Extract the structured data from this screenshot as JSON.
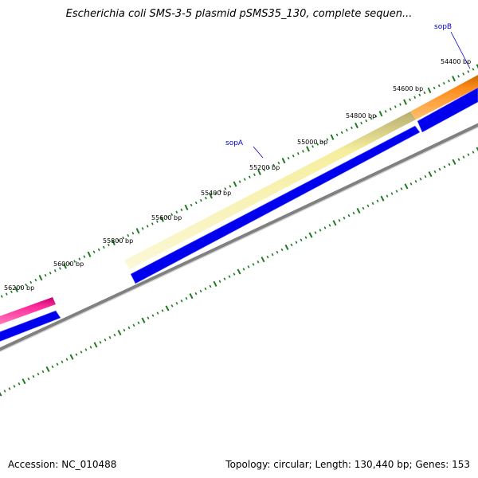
{
  "title": "Escherichia coli SMS-3-5 plasmid pSMS35_130, complete sequen...",
  "footer": {
    "accession": "Accession: NC_010488",
    "summary": "Topology: circular; Length: 130,440 bp; Genes: 153"
  },
  "ticks": [
    "54400 bp",
    "54600 bp",
    "54800 bp",
    "55000 bp",
    "55200 bp",
    "55400 bp",
    "55600 bp",
    "55800 bp",
    "56000 bp",
    "56200 bp"
  ],
  "genes": [
    {
      "name": "sopB"
    },
    {
      "name": "sopA"
    }
  ],
  "colors": {
    "backbone": "#808080",
    "cds": "#0000ee",
    "feature_pale": "#f2e99a",
    "feature_orange": "#ff8c00",
    "feature_pink": "#ff1493",
    "tick": "#1f7a1f",
    "label_line": "#0000cc"
  }
}
